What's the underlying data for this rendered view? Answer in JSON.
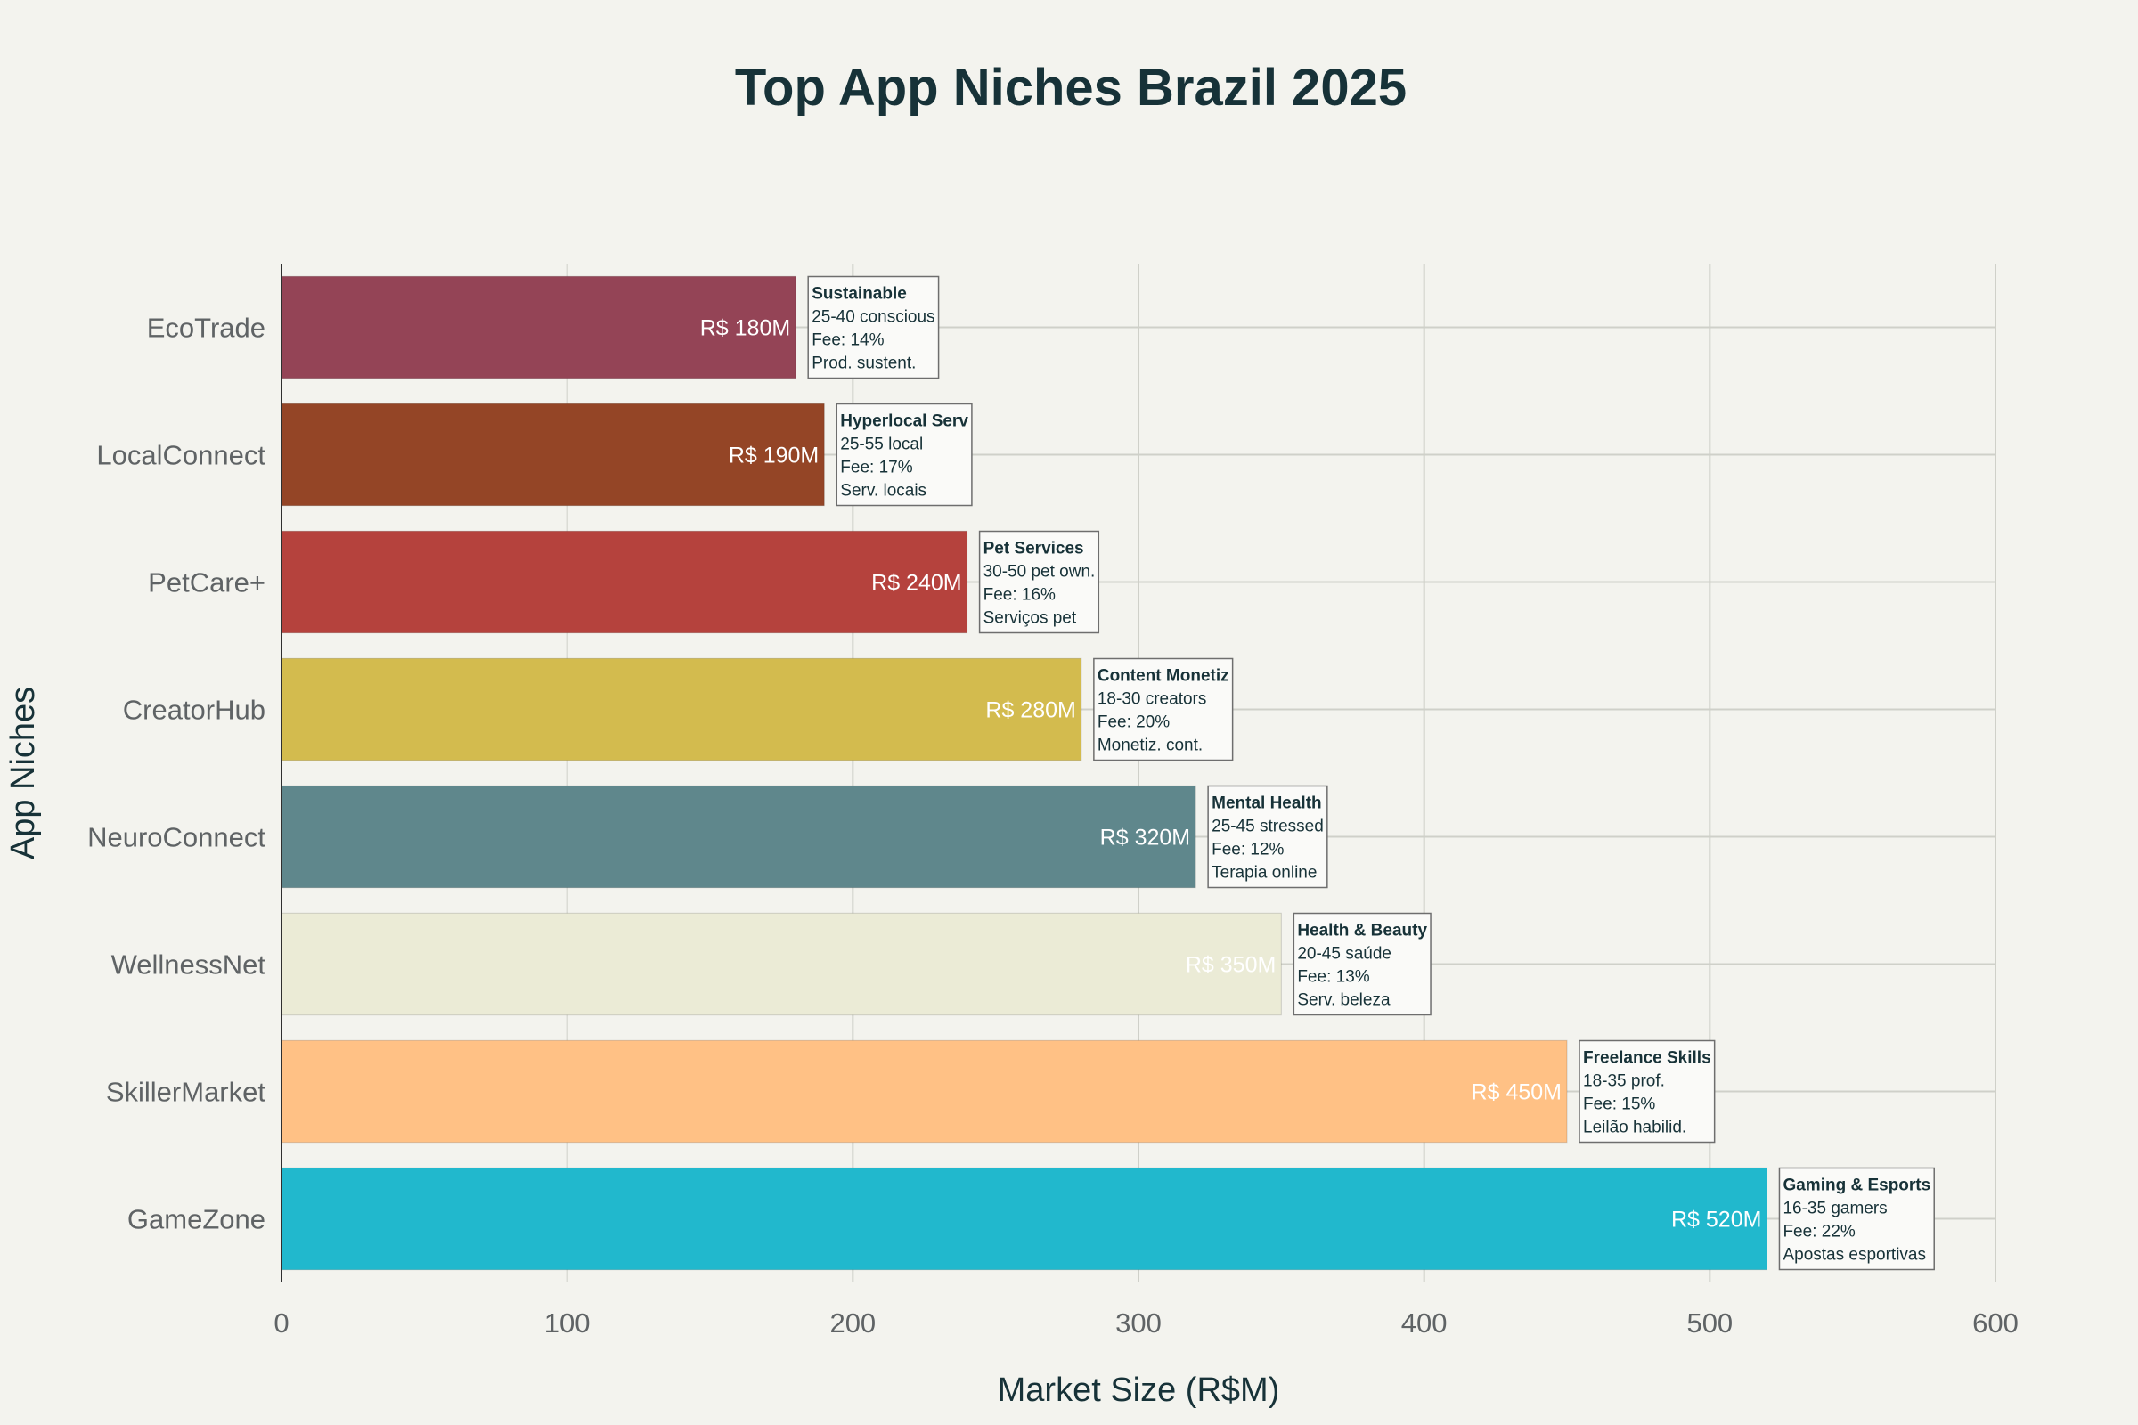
{
  "chart_data": {
    "type": "bar",
    "orientation": "horizontal",
    "title": "Top App Niches Brazil 2025",
    "xlabel": "Market Size (R$M)",
    "ylabel": "App Niches",
    "xlim": [
      0,
      600
    ],
    "x_ticks": [
      "0",
      "100",
      "200",
      "300",
      "400",
      "500",
      "600"
    ],
    "grid": true,
    "categories": [
      "EcoTrade",
      "LocalConnect",
      "PetCare+",
      "CreatorHub",
      "NeuroConnect",
      "WellnessNet",
      "SkillerMarket",
      "GameZone"
    ],
    "values": [
      180,
      190,
      240,
      280,
      320,
      350,
      450,
      520
    ],
    "value_labels": [
      "R$ 180M",
      "R$ 190M",
      "R$ 240M",
      "R$ 280M",
      "R$ 320M",
      "R$ 350M",
      "R$ 450M",
      "R$ 520M"
    ],
    "colors": [
      "#944456",
      "#944526",
      "#b5423d",
      "#d3bb4e",
      "#5f878c",
      "#ebebd6",
      "#ffc185",
      "#21b8cd"
    ],
    "annotations": [
      {
        "title": "Sustainable",
        "lines": [
          "25-40 conscious",
          "Fee: 14%",
          "Prod. sustent."
        ]
      },
      {
        "title": "Hyperlocal Serv",
        "lines": [
          "25-55 local",
          "Fee: 17%",
          "Serv. locais"
        ]
      },
      {
        "title": "Pet Services",
        "lines": [
          "30-50 pet own.",
          "Fee: 16%",
          "Serviços pet"
        ]
      },
      {
        "title": "Content Monetiz",
        "lines": [
          "18-30 creators",
          "Fee: 20%",
          "Monetiz. cont."
        ]
      },
      {
        "title": "Mental Health",
        "lines": [
          "25-45 stressed",
          "Fee: 12%",
          "Terapia online"
        ]
      },
      {
        "title": "Health & Beauty",
        "lines": [
          "20-45 saúde",
          "Fee: 13%",
          "Serv. beleza"
        ]
      },
      {
        "title": "Freelance Skills",
        "lines": [
          "18-35 prof.",
          "Fee: 15%",
          "Leilão habilid."
        ]
      },
      {
        "title": "Gaming & Esports",
        "lines": [
          "16-35 gamers",
          "Fee: 22%",
          "Apostas esportivas"
        ]
      }
    ]
  }
}
